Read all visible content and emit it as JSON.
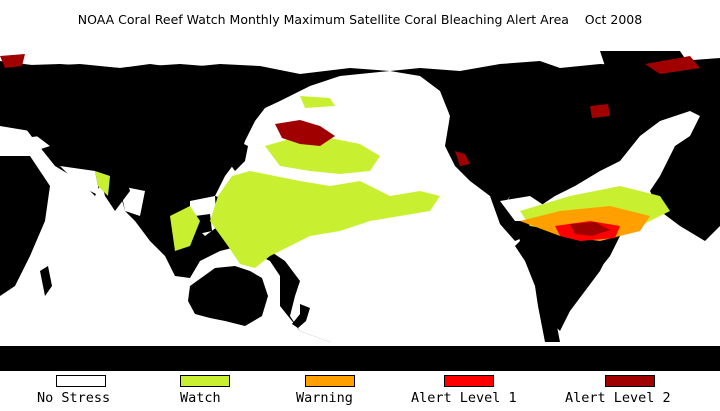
{
  "title": "NOAA Coral Reef Watch Monthly Maximum Satellite Coral Bleaching Alert Area    Oct 2008",
  "map": {
    "land_color": "#000000",
    "ocean_color": "#ffffff",
    "projection": "equirectangular, Pacific-centered"
  },
  "legend": [
    {
      "label": "No Stress",
      "color": "#ffffff",
      "icon": "no-stress-swatch"
    },
    {
      "label": "Watch",
      "color": "#c8f030",
      "icon": "watch-swatch"
    },
    {
      "label": "Warning",
      "color": "#ffa000",
      "icon": "warning-swatch"
    },
    {
      "label": "Alert Level 1",
      "color": "#ff0000",
      "icon": "alert-level-1-swatch"
    },
    {
      "label": "Alert Level 2",
      "color": "#a00000",
      "icon": "alert-level-2-swatch"
    }
  ]
}
